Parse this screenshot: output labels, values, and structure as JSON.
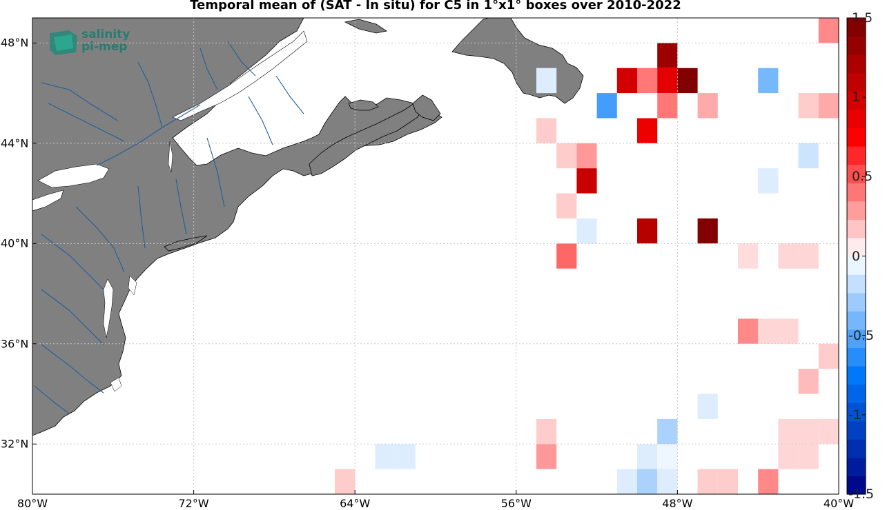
{
  "title": "Temporal mean of (SAT - In situ) for C5 in 1°x1° boxes over 2010-2022",
  "logo": {
    "line1": "salinity",
    "line2": "pi-mep"
  },
  "x_ticks": [
    {
      "lon": -80,
      "label": "80°W"
    },
    {
      "lon": -72,
      "label": "72°W"
    },
    {
      "lon": -64,
      "label": "64°W"
    },
    {
      "lon": -56,
      "label": "56°W"
    },
    {
      "lon": -48,
      "label": "48°W"
    },
    {
      "lon": -40,
      "label": "40°W"
    }
  ],
  "y_ticks": [
    {
      "lat": 48,
      "label": "48°N"
    },
    {
      "lat": 44,
      "label": "44°N"
    },
    {
      "lat": 40,
      "label": "40°N"
    },
    {
      "lat": 36,
      "label": "36°N"
    },
    {
      "lat": 32,
      "label": "32°N"
    }
  ],
  "colorbar": {
    "range": [
      -1.5,
      1.5
    ],
    "levels": 26,
    "ticks": [
      {
        "value": 1.5,
        "label": "1.5"
      },
      {
        "value": 1,
        "label": "1"
      },
      {
        "value": 0.5,
        "label": "0.5"
      },
      {
        "value": 0,
        "label": "0"
      },
      {
        "value": -0.5,
        "label": "-0.5"
      },
      {
        "value": -1,
        "label": "-1"
      },
      {
        "value": -1.5,
        "label": "-1.5"
      }
    ]
  },
  "colors": {
    "land": "#808080",
    "river": "#1f5f9a",
    "grid": "#c8c8c8",
    "coast": "#000000"
  },
  "chart_data": {
    "type": "heatmap",
    "title": "Temporal mean of (SAT - In situ) for C5 in 1°x1° boxes over 2010-2022",
    "xlim": [
      -80,
      -40
    ],
    "ylim": [
      30,
      49
    ],
    "clim": [
      -1.5,
      1.5
    ],
    "grid": true,
    "cells": [
      {
        "lon": -40.5,
        "lat": 48.5,
        "value": 0.35
      },
      {
        "lon": -48.5,
        "lat": 47.5,
        "value": 1.3
      },
      {
        "lon": -54.5,
        "lat": 46.5,
        "value": -0.1
      },
      {
        "lon": -50.5,
        "lat": 46.5,
        "value": 1.0
      },
      {
        "lon": -49.5,
        "lat": 46.5,
        "value": 0.4
      },
      {
        "lon": -48.5,
        "lat": 46.5,
        "value": 0.9
      },
      {
        "lon": -47.5,
        "lat": 46.5,
        "value": 1.45
      },
      {
        "lon": -43.5,
        "lat": 46.5,
        "value": -0.4
      },
      {
        "lon": -51.5,
        "lat": 45.5,
        "value": -0.55
      },
      {
        "lon": -48.5,
        "lat": 45.5,
        "value": 0.4
      },
      {
        "lon": -46.5,
        "lat": 45.5,
        "value": 0.25
      },
      {
        "lon": -41.5,
        "lat": 45.5,
        "value": 0.15
      },
      {
        "lon": -40.5,
        "lat": 45.5,
        "value": 0.25
      },
      {
        "lon": -54.5,
        "lat": 44.5,
        "value": 0.15
      },
      {
        "lon": -49.5,
        "lat": 44.5,
        "value": 0.85
      },
      {
        "lon": -53.5,
        "lat": 43.5,
        "value": 0.15
      },
      {
        "lon": -52.5,
        "lat": 43.5,
        "value": 0.3
      },
      {
        "lon": -41.5,
        "lat": 43.5,
        "value": -0.15
      },
      {
        "lon": -52.5,
        "lat": 42.5,
        "value": 1.05
      },
      {
        "lon": -43.5,
        "lat": 42.5,
        "value": -0.1
      },
      {
        "lon": -53.5,
        "lat": 41.5,
        "value": 0.15
      },
      {
        "lon": -52.5,
        "lat": 40.5,
        "value": -0.1
      },
      {
        "lon": -49.5,
        "lat": 40.5,
        "value": 1.15
      },
      {
        "lon": -46.5,
        "lat": 40.5,
        "value": 1.45
      },
      {
        "lon": -53.5,
        "lat": 39.5,
        "value": 0.45
      },
      {
        "lon": -44.5,
        "lat": 39.5,
        "value": 0.1
      },
      {
        "lon": -42.5,
        "lat": 39.5,
        "value": 0.12
      },
      {
        "lon": -41.5,
        "lat": 39.5,
        "value": 0.12
      },
      {
        "lon": -44.5,
        "lat": 36.5,
        "value": 0.35
      },
      {
        "lon": -43.5,
        "lat": 36.5,
        "value": 0.12
      },
      {
        "lon": -42.5,
        "lat": 36.5,
        "value": 0.12
      },
      {
        "lon": -40.5,
        "lat": 35.5,
        "value": 0.15
      },
      {
        "lon": -41.5,
        "lat": 34.5,
        "value": 0.2
      },
      {
        "lon": -46.5,
        "lat": 33.5,
        "value": -0.1
      },
      {
        "lon": -54.5,
        "lat": 32.5,
        "value": 0.15
      },
      {
        "lon": -48.5,
        "lat": 32.5,
        "value": -0.25
      },
      {
        "lon": -42.5,
        "lat": 32.5,
        "value": 0.12
      },
      {
        "lon": -41.5,
        "lat": 32.5,
        "value": 0.12
      },
      {
        "lon": -40.5,
        "lat": 32.5,
        "value": 0.12
      },
      {
        "lon": -62.5,
        "lat": 31.5,
        "value": -0.1
      },
      {
        "lon": -61.5,
        "lat": 31.5,
        "value": -0.1
      },
      {
        "lon": -54.5,
        "lat": 31.5,
        "value": 0.3
      },
      {
        "lon": -49.5,
        "lat": 31.5,
        "value": -0.1
      },
      {
        "lon": -48.5,
        "lat": 31.5,
        "value": -0.05
      },
      {
        "lon": -42.5,
        "lat": 31.5,
        "value": 0.12
      },
      {
        "lon": -41.5,
        "lat": 31.5,
        "value": 0.12
      },
      {
        "lon": -64.5,
        "lat": 30.5,
        "value": 0.15
      },
      {
        "lon": -50.5,
        "lat": 30.5,
        "value": -0.1
      },
      {
        "lon": -49.5,
        "lat": 30.5,
        "value": -0.25
      },
      {
        "lon": -48.5,
        "lat": 30.5,
        "value": -0.1
      },
      {
        "lon": -46.5,
        "lat": 30.5,
        "value": 0.15
      },
      {
        "lon": -45.5,
        "lat": 30.5,
        "value": 0.15
      },
      {
        "lon": -43.5,
        "lat": 30.5,
        "value": 0.35
      }
    ]
  }
}
